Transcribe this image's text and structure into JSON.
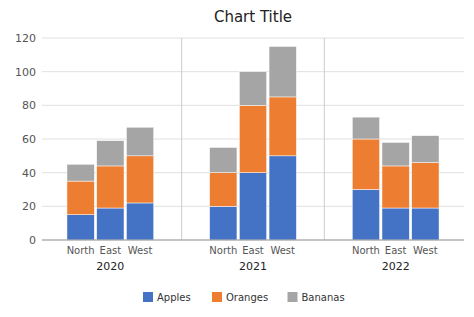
{
  "chart_data": {
    "type": "bar",
    "title": "Chart Title",
    "categories": [
      "North",
      "East",
      "West",
      "North",
      "East",
      "West",
      "North",
      "East",
      "West"
    ],
    "groups": [
      "2020",
      "2021",
      "2022"
    ],
    "series": [
      {
        "name": "Apples",
        "color": "#4472C4",
        "values": [
          15,
          19,
          22,
          20,
          40,
          50,
          30,
          19,
          19
        ]
      },
      {
        "name": "Oranges",
        "color": "#ED7D31",
        "values": [
          20,
          25,
          28,
          20,
          40,
          35,
          30,
          25,
          27
        ]
      },
      {
        "name": "Bananas",
        "color": "#A5A5A5",
        "values": [
          10,
          15,
          17,
          15,
          20,
          30,
          13,
          14,
          16
        ]
      }
    ],
    "stacked": true,
    "ylim": [
      0,
      120
    ],
    "yticks": [
      0,
      20,
      40,
      60,
      80,
      100,
      120
    ],
    "grid": true,
    "legend": "bottom"
  }
}
